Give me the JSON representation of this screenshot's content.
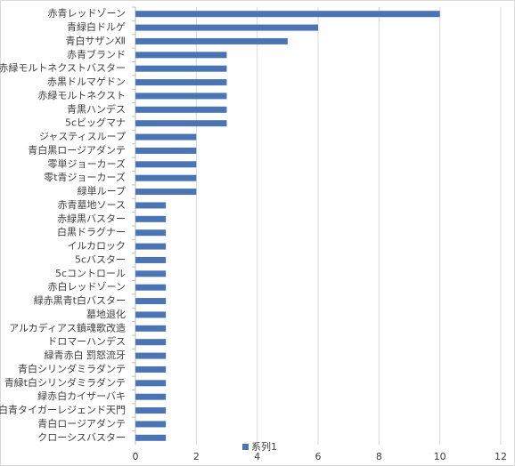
{
  "chart_data": {
    "type": "bar",
    "orientation": "horizontal",
    "categories": [
      "赤青レッドゾーン",
      "青緑白ドルゲ",
      "青白サザンⅫ",
      "赤青ブランド",
      "赤緑モルトネクストバスター",
      "赤黒ドルマゲドン",
      "赤緑モルトネクスト",
      "青黒ハンデス",
      "5cビッグマナ",
      "ジャスティスループ",
      "青白黒ロージアダンテ",
      "零単ジョーカーズ",
      "零t青ジョーカーズ",
      "緑単ループ",
      "赤青墓地ソース",
      "赤緑黒バスター",
      "白黒ドラグナー",
      "イルカロック",
      "5cバスター",
      "5cコントロール",
      "赤白レッドゾーン",
      "緑赤黒青t白バスター",
      "墓地退化",
      "アルカディアス鎮魂歌改造",
      "ドロマーハンデス",
      "緑青赤白 罰怒流牙",
      "青白シリンダミラダンテ",
      "青緑t白シリンダミラダンテ",
      "緑赤白カイザーバキ",
      "白青タイガーレジェンド天門",
      "青白ロージアダンテ",
      "クローシスバスター"
    ],
    "series": [
      {
        "name": "系列1",
        "color": "#4a74b4",
        "values": [
          10,
          6,
          5,
          3,
          3,
          3,
          3,
          3,
          3,
          2,
          2,
          2,
          2,
          2,
          1,
          1,
          1,
          1,
          1,
          1,
          1,
          1,
          1,
          1,
          1,
          1,
          1,
          1,
          1,
          1,
          1,
          1
        ]
      }
    ],
    "xlim": [
      0,
      12
    ],
    "xticks": [
      0,
      2,
      4,
      6,
      8,
      10,
      12
    ],
    "grid": true,
    "legend": "bottom"
  }
}
